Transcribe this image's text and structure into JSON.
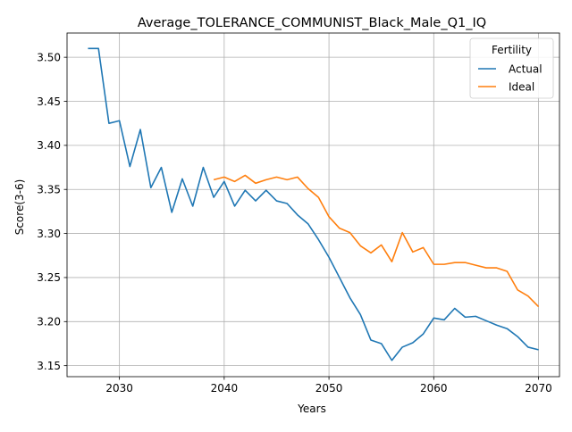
{
  "chart_data": {
    "type": "line",
    "title": "Average_TOLERANCE_COMMUNIST_Black_Male_Q1_IQ",
    "xlabel": "Years",
    "ylabel": "Score(3-6)",
    "xlim": [
      2025,
      2072
    ],
    "ylim": [
      3.1375,
      3.5275
    ],
    "xticks": [
      2030,
      2040,
      2050,
      2060,
      2070
    ],
    "yticks": [
      3.15,
      3.2,
      3.25,
      3.3,
      3.35,
      3.4,
      3.45,
      3.5
    ],
    "ytick_labels": [
      "3.15",
      "3.20",
      "3.25",
      "3.30",
      "3.35",
      "3.40",
      "3.45",
      "3.50"
    ],
    "grid": true,
    "legend": {
      "title": "Fertility",
      "placement": "top-right"
    },
    "series": [
      {
        "name": "Actual",
        "color": "#1f77b4",
        "x": [
          2027,
          2028,
          2029,
          2030,
          2031,
          2032,
          2033,
          2034,
          2035,
          2036,
          2037,
          2038,
          2039,
          2040,
          2041,
          2042,
          2043,
          2044,
          2045,
          2046,
          2047,
          2048,
          2049,
          2050,
          2051,
          2052,
          2053,
          2054,
          2055,
          2056,
          2057,
          2058,
          2059,
          2060,
          2061,
          2062,
          2063,
          2064,
          2065,
          2066,
          2067,
          2068,
          2069,
          2070
        ],
        "values": [
          3.51,
          3.51,
          3.425,
          3.428,
          3.376,
          3.418,
          3.352,
          3.375,
          3.324,
          3.362,
          3.331,
          3.375,
          3.341,
          3.359,
          3.331,
          3.349,
          3.337,
          3.349,
          3.337,
          3.334,
          3.321,
          3.311,
          3.293,
          3.273,
          3.25,
          3.227,
          3.208,
          3.179,
          3.175,
          3.156,
          3.171,
          3.176,
          3.186,
          3.204,
          3.202,
          3.215,
          3.205,
          3.206,
          3.201,
          3.196,
          3.192,
          3.183,
          3.171,
          3.168
        ]
      },
      {
        "name": "Ideal",
        "color": "#ff7f0e",
        "x": [
          2039,
          2040,
          2041,
          2042,
          2043,
          2044,
          2045,
          2046,
          2047,
          2048,
          2049,
          2050,
          2051,
          2052,
          2053,
          2054,
          2055,
          2056,
          2057,
          2058,
          2059,
          2060,
          2061,
          2062,
          2063,
          2064,
          2065,
          2066,
          2067,
          2068,
          2069,
          2070
        ],
        "values": [
          3.361,
          3.364,
          3.359,
          3.366,
          3.357,
          3.361,
          3.364,
          3.361,
          3.364,
          3.351,
          3.341,
          3.319,
          3.306,
          3.301,
          3.286,
          3.278,
          3.287,
          3.268,
          3.301,
          3.279,
          3.284,
          3.265,
          3.265,
          3.267,
          3.267,
          3.264,
          3.261,
          3.261,
          3.257,
          3.236,
          3.229,
          3.217
        ]
      }
    ]
  }
}
